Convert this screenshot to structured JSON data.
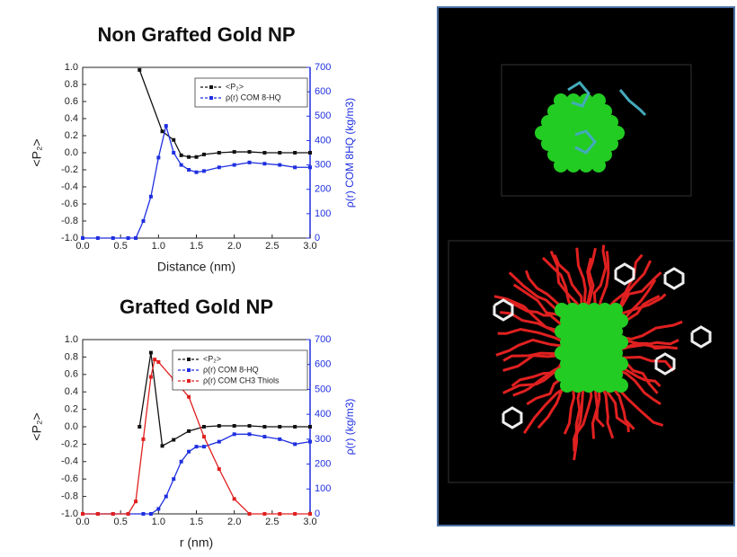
{
  "chart_data": [
    {
      "type": "line",
      "title": "Non Grafted Gold NP",
      "xlabel": "Distance (nm)",
      "ylabel": "<P₂>",
      "y2label": "ρ(r) COM 8HQ (kg/m3)",
      "legend": "upper right",
      "xlim": [
        0,
        3
      ],
      "xticks": [
        {
          "value": 0,
          "label": "0.0"
        },
        {
          "value": 0.5,
          "label": "0.5"
        },
        {
          "value": 1,
          "label": "1.0"
        },
        {
          "value": 1.5,
          "label": "1.5"
        },
        {
          "value": 2,
          "label": "2.0"
        },
        {
          "value": 2.5,
          "label": "2.5"
        },
        {
          "value": 3,
          "label": "3.0"
        }
      ],
      "ylim": [
        -1,
        1
      ],
      "yticks": [
        {
          "value": 1,
          "label": "1.0"
        },
        {
          "value": 0.8,
          "label": "0.8"
        },
        {
          "value": 0.6,
          "label": "0.6"
        },
        {
          "value": 0.4,
          "label": "0.4"
        },
        {
          "value": 0.2,
          "label": "0.2"
        },
        {
          "value": 0,
          "label": "0.0"
        },
        {
          "value": -0.2,
          "label": "-0.2"
        },
        {
          "value": -0.4,
          "label": "-0.4"
        },
        {
          "value": -0.6,
          "label": "-0.6"
        },
        {
          "value": -0.8,
          "label": "-0.8"
        },
        {
          "value": -1,
          "label": "-1.0"
        }
      ],
      "y2lim": [
        0,
        700
      ],
      "y2ticks": [
        0,
        100,
        200,
        300,
        400,
        500,
        600,
        700
      ],
      "series": [
        {
          "name": "<P₂>",
          "color": "#111111",
          "x": [
            0.75,
            1.05,
            1.2,
            1.3,
            1.4,
            1.5,
            1.6,
            1.8,
            2.0,
            2.2,
            2.4,
            2.6,
            2.8,
            3.0
          ],
          "values": [
            0.97,
            0.25,
            0.15,
            -0.03,
            -0.05,
            -0.05,
            -0.02,
            0,
            0.01,
            0.01,
            0,
            0,
            0,
            0
          ]
        },
        {
          "name": "ρ(r) COM 8-HQ",
          "color": "#1f2fe0",
          "axis": "y2",
          "x": [
            0,
            0.2,
            0.4,
            0.6,
            0.7,
            0.8,
            0.9,
            1.0,
            1.1,
            1.2,
            1.3,
            1.4,
            1.5,
            1.6,
            1.8,
            2.0,
            2.2,
            2.4,
            2.6,
            2.8,
            3.0
          ],
          "values": [
            0,
            0,
            0,
            0,
            0,
            70,
            170,
            330,
            460,
            350,
            300,
            280,
            270,
            275,
            290,
            300,
            310,
            305,
            300,
            290,
            290
          ]
        }
      ]
    },
    {
      "type": "line",
      "title": "Grafted Gold NP",
      "xlabel": "r (nm)",
      "ylabel": "<P₂>",
      "y2label": "ρ(r) (kg/m3)",
      "legend": "upper right",
      "xlim": [
        0,
        3
      ],
      "xticks": [
        {
          "value": 0,
          "label": "0.0"
        },
        {
          "value": 0.5,
          "label": "0.5"
        },
        {
          "value": 1,
          "label": "1.0"
        },
        {
          "value": 1.5,
          "label": "1.5"
        },
        {
          "value": 2,
          "label": "2.0"
        },
        {
          "value": 2.5,
          "label": "2.5"
        },
        {
          "value": 3,
          "label": "3.0"
        }
      ],
      "ylim": [
        -1,
        1
      ],
      "yticks": [
        {
          "value": 1,
          "label": "1.0"
        },
        {
          "value": 0.8,
          "label": "0.8"
        },
        {
          "value": 0.6,
          "label": "0.6"
        },
        {
          "value": 0.4,
          "label": "0.4"
        },
        {
          "value": 0.2,
          "label": "0.2"
        },
        {
          "value": 0,
          "label": "0.0"
        },
        {
          "value": -0.2,
          "label": "-0.2"
        },
        {
          "value": -0.4,
          "label": "-0.4"
        },
        {
          "value": -0.6,
          "label": "-0.6"
        },
        {
          "value": -0.8,
          "label": "-0.8"
        },
        {
          "value": -1,
          "label": "-1.0"
        }
      ],
      "y2lim": [
        0,
        700
      ],
      "y2ticks": [
        0,
        100,
        200,
        300,
        400,
        500,
        600,
        700
      ],
      "series": [
        {
          "name": "<P₂>",
          "color": "#111111",
          "x": [
            0.75,
            0.9,
            1.05,
            1.2,
            1.4,
            1.6,
            1.8,
            2.0,
            2.2,
            2.4,
            2.6,
            2.8,
            3.0
          ],
          "values": [
            0,
            0.85,
            -0.22,
            -0.15,
            -0.05,
            0,
            0.01,
            0.01,
            0.01,
            0,
            0,
            0,
            0
          ]
        },
        {
          "name": "ρ(r) COM 8-HQ",
          "color": "#1f2fe0",
          "axis": "y2",
          "x": [
            0,
            0.2,
            0.4,
            0.6,
            0.8,
            0.9,
            1.0,
            1.1,
            1.2,
            1.3,
            1.4,
            1.5,
            1.6,
            1.8,
            2.0,
            2.2,
            2.4,
            2.6,
            2.8,
            3.0
          ],
          "values": [
            0,
            0,
            0,
            0,
            0,
            0,
            20,
            70,
            140,
            210,
            250,
            270,
            270,
            290,
            320,
            320,
            310,
            300,
            280,
            290
          ]
        },
        {
          "name": "ρ(r) COM CH3 Thiols",
          "color": "#e02020",
          "axis": "y2",
          "x": [
            0,
            0.2,
            0.4,
            0.6,
            0.7,
            0.8,
            0.9,
            0.95,
            1.0,
            1.2,
            1.4,
            1.6,
            1.8,
            2.0,
            2.2,
            2.4,
            2.6,
            2.8,
            3.0
          ],
          "values": [
            0,
            0,
            0,
            0,
            50,
            300,
            550,
            620,
            610,
            540,
            470,
            310,
            180,
            60,
            0,
            0,
            0,
            0,
            0
          ]
        }
      ]
    }
  ]
}
